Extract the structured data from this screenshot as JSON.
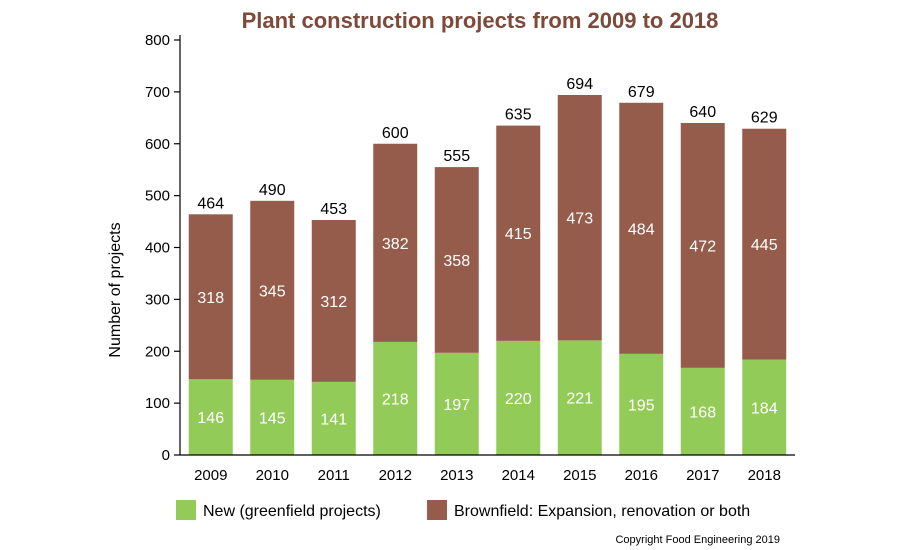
{
  "chart_data": {
    "type": "bar",
    "stacked": true,
    "title": "Plant construction projects from 2009 to 2018",
    "ylabel": "Number of projects",
    "xlabel": "",
    "ylim": [
      0,
      800
    ],
    "yticks": [
      0,
      100,
      200,
      300,
      400,
      500,
      600,
      700,
      800
    ],
    "categories": [
      "2009",
      "2010",
      "2011",
      "2012",
      "2013",
      "2014",
      "2015",
      "2016",
      "2017",
      "2018"
    ],
    "series": [
      {
        "name": "New (greenfield projects)",
        "color": "#93cb58",
        "values": [
          146,
          145,
          141,
          218,
          197,
          220,
          221,
          195,
          168,
          184
        ]
      },
      {
        "name": "Brownfield: Expansion, renovation or both",
        "color": "#955c4c",
        "values": [
          318,
          345,
          312,
          382,
          358,
          415,
          473,
          484,
          472,
          445
        ]
      }
    ],
    "totals": [
      464,
      490,
      453,
      600,
      555,
      635,
      694,
      679,
      640,
      629
    ],
    "legend_position": "bottom",
    "grid": false,
    "colors": {
      "title": "#7d4a3a",
      "axis": "#000000",
      "inner_label": "#ffffff"
    }
  },
  "copyright": "Copyright Food Engineering 2019"
}
